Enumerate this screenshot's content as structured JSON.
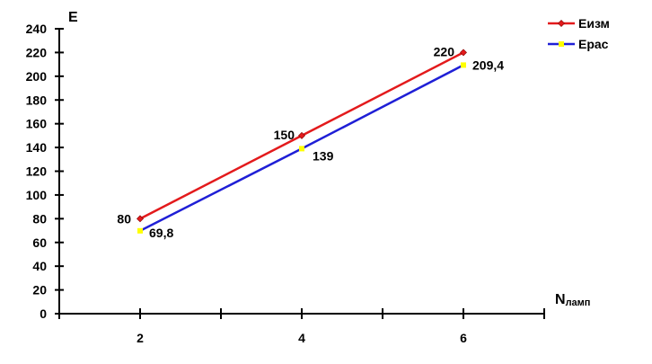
{
  "chart_data": {
    "type": "line",
    "ylabel": "E",
    "xlabel_main": "N",
    "xlabel_sub": "ламп",
    "x": [
      2,
      4,
      6
    ],
    "xticks": [
      2,
      4,
      6
    ],
    "xlim": [
      1,
      7
    ],
    "ylim": [
      0,
      240
    ],
    "ystep": 20,
    "grid": false,
    "legend": "top-right",
    "series": [
      {
        "name": "Еизм",
        "color": "#e31a1c",
        "marker_color": "#e31a1c",
        "values": [
          80,
          150,
          220
        ],
        "labels": [
          "80",
          "150",
          "220"
        ]
      },
      {
        "name": "Ерас",
        "color": "#1f1fd6",
        "marker_color": "#ffff00",
        "values": [
          69.8,
          139,
          209.4
        ],
        "labels": [
          "69,8",
          "139",
          "209,4"
        ]
      }
    ]
  }
}
